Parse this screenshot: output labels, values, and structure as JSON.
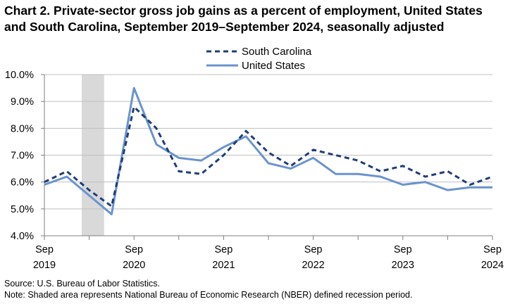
{
  "title_line1": "Chart 2. Private-sector gross job gains as a percent of employment, United States",
  "title_line2": "and South Carolina, September 2019–September 2024, seasonally adjusted",
  "source": "Source: U.S. Bureau of Labor Statistics.",
  "note": "Note: Shaded area represents National Bureau of Economic Research (NBER) defined  recession period.",
  "chart_data": {
    "type": "line",
    "title": "Chart 2. Private-sector gross job gains as a percent of employment, United States and South Carolina, September 2019–September 2024, seasonally adjusted",
    "x": [
      "Sep 2019",
      "Dec 2019",
      "Mar 2020",
      "Jun 2020",
      "Sep 2020",
      "Dec 2020",
      "Mar 2021",
      "Jun 2021",
      "Sep 2021",
      "Dec 2021",
      "Mar 2022",
      "Jun 2022",
      "Sep 2022",
      "Dec 2022",
      "Mar 2023",
      "Jun 2023",
      "Sep 2023",
      "Dec 2023",
      "Mar 2024",
      "Jun 2024",
      "Sep 2024"
    ],
    "series": [
      {
        "name": "South Carolina",
        "style": "dashed",
        "color": "#1f3d7a",
        "values": [
          6.0,
          6.4,
          5.7,
          5.1,
          8.8,
          8.0,
          6.4,
          6.3,
          7.0,
          7.9,
          7.1,
          6.6,
          7.2,
          7.0,
          6.8,
          6.4,
          6.6,
          6.2,
          6.4,
          5.9,
          6.2
        ]
      },
      {
        "name": "United States",
        "style": "solid",
        "color": "#6a93cf",
        "values": [
          5.9,
          6.2,
          5.5,
          4.8,
          9.5,
          7.4,
          6.9,
          6.8,
          7.3,
          7.7,
          6.7,
          6.5,
          6.9,
          6.3,
          6.3,
          6.2,
          5.9,
          6.0,
          5.7,
          5.8,
          5.8
        ]
      }
    ],
    "ylim": [
      4.0,
      10.0
    ],
    "yticks": [
      "4.0%",
      "5.0%",
      "6.0%",
      "7.0%",
      "8.0%",
      "9.0%",
      "10.0%"
    ],
    "xtick_labels": [
      {
        "month": "Sep",
        "year": "2019",
        "index": 0
      },
      {
        "month": "Sep",
        "year": "2020",
        "index": 4
      },
      {
        "month": "Sep",
        "year": "2021",
        "index": 8
      },
      {
        "month": "Sep",
        "year": "2022",
        "index": 12
      },
      {
        "month": "Sep",
        "year": "2023",
        "index": 16
      },
      {
        "month": "Sep",
        "year": "2024",
        "index": 20
      }
    ],
    "recession": {
      "start_index": 1.6667,
      "end_index": 2.6667
    },
    "grid": true,
    "legend": "top-center"
  }
}
